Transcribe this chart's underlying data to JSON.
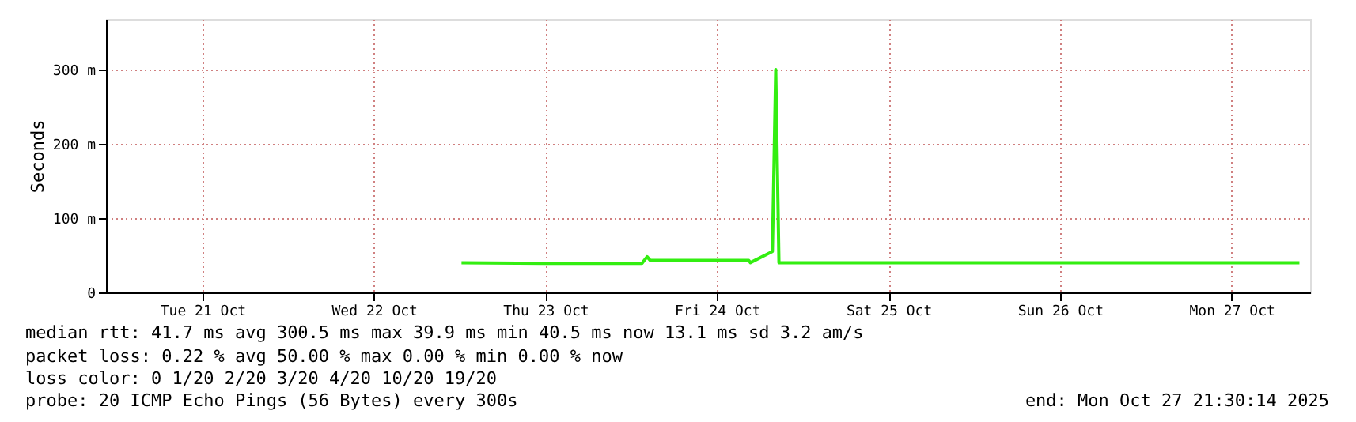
{
  "chart_data": {
    "type": "line",
    "ylabel": "Seconds",
    "x": [
      "2025-10-23T00:15",
      "2025-10-23T12:00",
      "2025-10-24T01:30",
      "2025-10-24T02:13",
      "2025-10-24T02:40",
      "2025-10-24T16:27",
      "2025-10-24T16:40",
      "2025-10-24T19:45",
      "2025-10-24T20:13",
      "2025-10-24T20:40",
      "2025-10-25T12:00",
      "2025-10-26T12:00",
      "2025-10-27T12:00",
      "2025-10-27T21:30"
    ],
    "series": [
      {
        "color": "#33ee11",
        "values": [
          40,
          39,
          39,
          48,
          43,
          43,
          40,
          55,
          300,
          40,
          40,
          40,
          40,
          40
        ]
      }
    ],
    "xlim": [
      "2025-10-20T22:30",
      "2025-10-27T23:00"
    ],
    "xticks": [
      {
        "value": "2025-10-21T12:00",
        "label": "Tue 21 Oct"
      },
      {
        "value": "2025-10-22T12:00",
        "label": "Wed 22 Oct"
      },
      {
        "value": "2025-10-23T12:00",
        "label": "Thu 23 Oct"
      },
      {
        "value": "2025-10-24T12:00",
        "label": "Fri 24 Oct"
      },
      {
        "value": "2025-10-25T12:00",
        "label": "Sat 25 Oct"
      },
      {
        "value": "2025-10-26T12:00",
        "label": "Sun 26 Oct"
      },
      {
        "value": "2025-10-27T12:00",
        "label": "Mon 27 Oct"
      }
    ],
    "ylim": [
      0,
      368
    ],
    "yticks": [
      0,
      {
        "value": 100,
        "label": "100 m"
      },
      {
        "value": 200,
        "label": "200 m"
      },
      {
        "value": 300,
        "label": "300 m"
      }
    ],
    "grid": true,
    "marker": "none",
    "line_style": "solid",
    "annotations": [
      "median rtt:  41.7 ms avg  300.5 ms max  39.9 ms min  40.5 ms now  13.1 ms sd  3.2   am/s",
      "packet loss: 0.22 % avg  50.00 % max  0.00 % min  0.00 % now",
      "loss color:  0  1/20  2/20  3/20  4/20  10/20  19/20",
      "probe:       20 ICMP Echo Pings (56 Bytes) every 300s",
      "end: Mon Oct 27 21:30:14 2025"
    ]
  }
}
